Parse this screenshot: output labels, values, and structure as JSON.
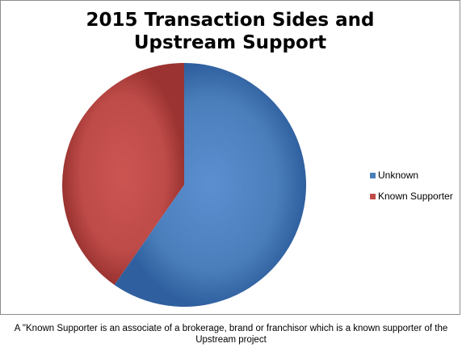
{
  "chart_data": {
    "type": "pie",
    "title_lines": [
      "2015 Transaction Sides and",
      "Upstream Support"
    ],
    "slices": [
      {
        "label": "Unknown",
        "value": 59.7,
        "color": "#4a7ebb"
      },
      {
        "label": "Known Supporter",
        "value": 40.3,
        "color": "#be4b48"
      }
    ],
    "legend_position": "right"
  },
  "footnote": {
    "line1": "A \"Known Supporter is an associate of a brokerage, brand or franchisor which is a known supporter of the",
    "line2": "Upstream project"
  }
}
